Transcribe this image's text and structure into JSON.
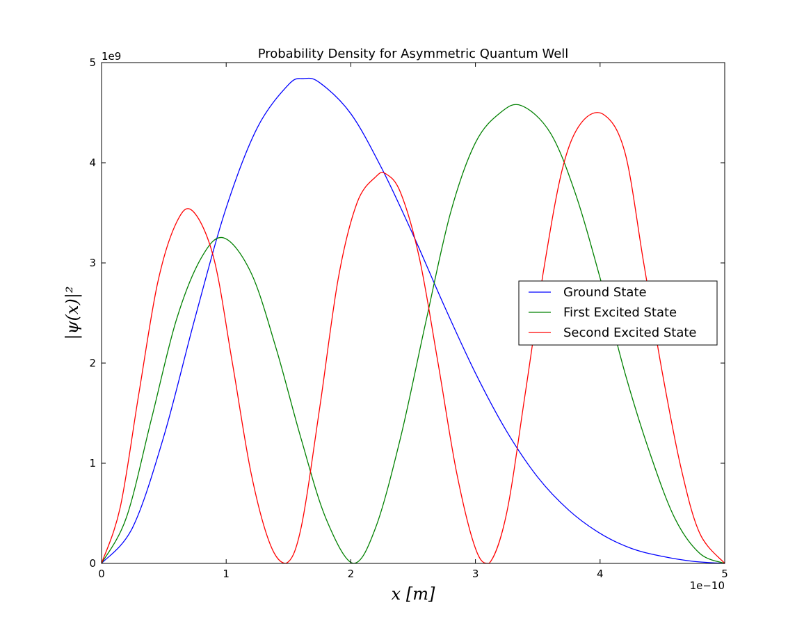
{
  "chart_data": {
    "type": "line",
    "title": "Probability Density for Asymmetric Quantum Well",
    "xlabel": "x [m]",
    "ylabel": "|ψ(x)|²",
    "x_multiplier": "1e−10",
    "y_multiplier": "1e9",
    "xlim": [
      0,
      5
    ],
    "ylim": [
      0,
      5
    ],
    "x_ticks": [
      "0",
      "1",
      "2",
      "3",
      "4",
      "5"
    ],
    "y_ticks": [
      "0",
      "1",
      "2",
      "3",
      "4",
      "5"
    ],
    "grid": false,
    "legend_position": "center-right",
    "series": [
      {
        "name": "Ground State",
        "color": "#0000ff",
        "x": [
          0,
          0.25,
          0.5,
          0.75,
          1.0,
          1.25,
          1.5,
          1.62,
          1.75,
          2.0,
          2.25,
          2.5,
          2.75,
          3.0,
          3.25,
          3.5,
          3.75,
          4.0,
          4.25,
          4.5,
          4.75,
          5.0
        ],
        "y": [
          0,
          0.36,
          1.27,
          2.45,
          3.55,
          4.35,
          4.78,
          4.84,
          4.8,
          4.49,
          3.94,
          3.28,
          2.57,
          1.9,
          1.32,
          0.86,
          0.53,
          0.3,
          0.15,
          0.07,
          0.02,
          0
        ]
      },
      {
        "name": "First Excited State",
        "color": "#008000",
        "x": [
          0,
          0.2,
          0.4,
          0.6,
          0.8,
          0.98,
          1.2,
          1.4,
          1.6,
          1.8,
          2.02,
          2.2,
          2.4,
          2.6,
          2.8,
          3.0,
          3.2,
          3.37,
          3.6,
          3.8,
          4.0,
          4.2,
          4.4,
          4.6,
          4.8,
          5.0
        ],
        "y": [
          0,
          0.46,
          1.44,
          2.43,
          3.05,
          3.25,
          2.9,
          2.15,
          1.25,
          0.45,
          0,
          0.36,
          1.26,
          2.4,
          3.5,
          4.2,
          4.5,
          4.57,
          4.3,
          3.7,
          2.85,
          1.9,
          1.1,
          0.45,
          0.1,
          0
        ]
      },
      {
        "name": "Second Excited State",
        "color": "#ff0000",
        "x": [
          0,
          0.15,
          0.3,
          0.45,
          0.6,
          0.73,
          0.9,
          1.05,
          1.2,
          1.35,
          1.48,
          1.6,
          1.75,
          1.9,
          2.05,
          2.2,
          2.28,
          2.4,
          2.55,
          2.7,
          2.85,
          3.0,
          3.11,
          3.25,
          3.4,
          3.55,
          3.7,
          3.85,
          4.03,
          4.2,
          4.35,
          4.5,
          4.65,
          4.8,
          5.0
        ],
        "y": [
          0,
          0.56,
          1.7,
          2.8,
          3.4,
          3.52,
          3.05,
          2.0,
          0.9,
          0.2,
          0,
          0.35,
          1.55,
          2.85,
          3.6,
          3.86,
          3.89,
          3.7,
          3.05,
          2.0,
          0.9,
          0.15,
          0,
          0.5,
          1.7,
          2.95,
          3.95,
          4.4,
          4.48,
          4.1,
          3.0,
          1.9,
          0.95,
          0.3,
          0
        ]
      }
    ]
  }
}
